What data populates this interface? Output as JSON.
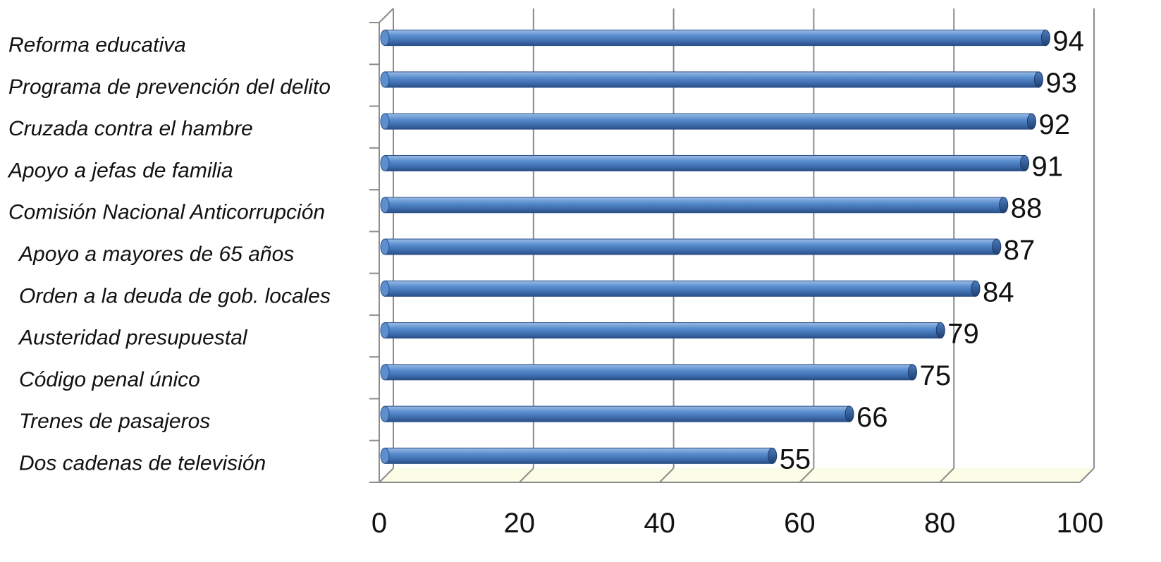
{
  "chart_data": {
    "type": "bar",
    "orientation": "horizontal",
    "style": "3d-cylinder",
    "categories": [
      "Reforma educativa",
      "Programa de prevención del delito",
      "Cruzada contra el hambre",
      "Apoyo a jefas de familia",
      "Comisión Nacional Anticorrupción",
      "Apoyo a mayores de 65 años",
      "Orden a la deuda de gob. locales",
      "Austeridad presupuestal",
      "Código penal único",
      "Trenes de pasajeros",
      "Dos cadenas de televisión"
    ],
    "values": [
      94,
      93,
      92,
      91,
      88,
      87,
      84,
      79,
      75,
      66,
      55
    ],
    "value_labels": [
      "94",
      "93",
      "92",
      "91",
      "88",
      "87",
      "84",
      "79",
      "75",
      "66",
      "55"
    ],
    "xlim": [
      0,
      100
    ],
    "x_ticks": [
      "0",
      "20",
      "40",
      "60",
      "80",
      "100"
    ],
    "grid": true,
    "legend": "none",
    "colors": {
      "bar": "#4f81bd",
      "bar_dark": "#2c5487",
      "bar_light": "#8fb3e0",
      "grid": "#8c8c8c",
      "floor": "#fcfde6"
    }
  }
}
